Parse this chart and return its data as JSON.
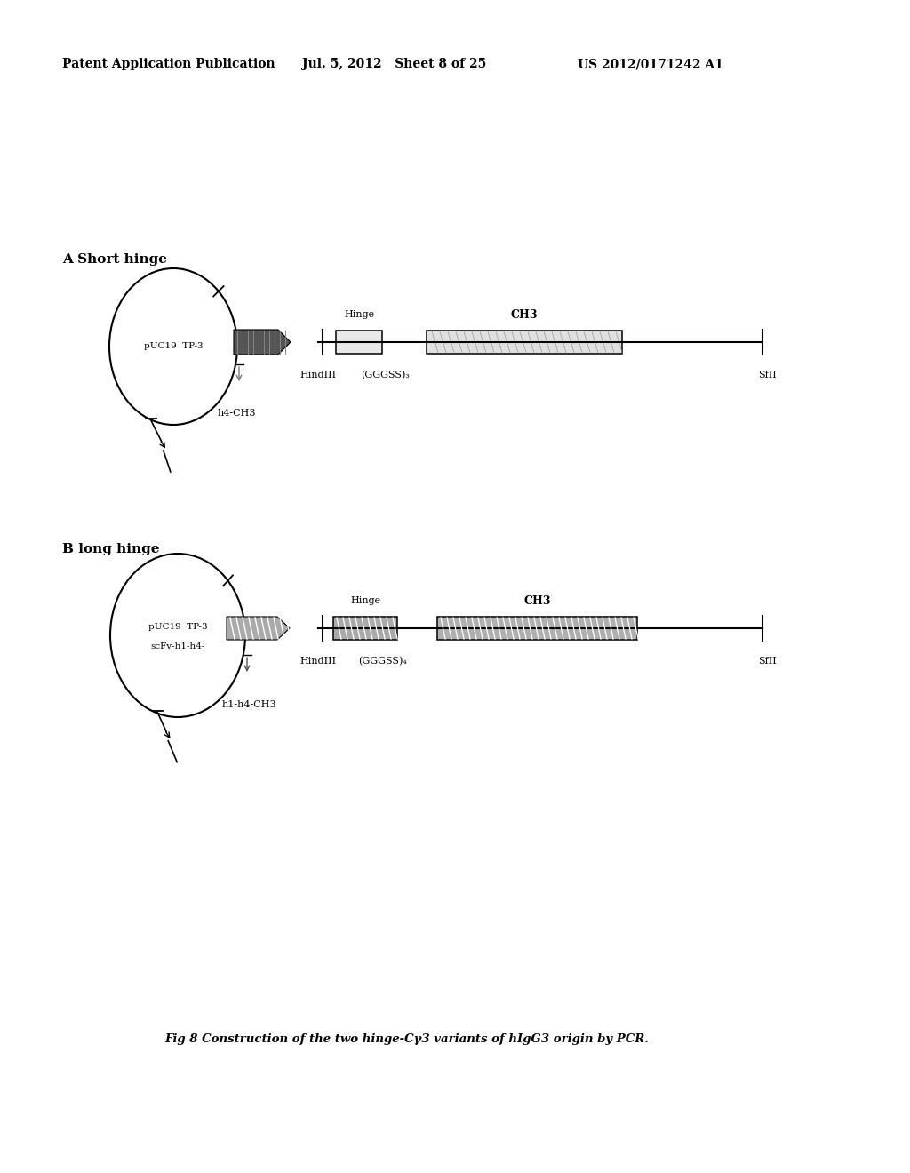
{
  "bg_color": "#ffffff",
  "header_left": "Patent Application Publication",
  "header_mid": "Jul. 5, 2012   Sheet 8 of 25",
  "header_right": "US 2012/0171242 A1",
  "section_A_label": "A Short hinge",
  "section_B_label": "B long hinge",
  "circle_A_text1": "pUC19  TP-3",
  "circle_A_label": "h4-CH3",
  "circle_B_text1": "pUC19  TP-3",
  "circle_B_text2": "scFv-h1-h4-",
  "circle_B_label": "h1-h4-CH3",
  "hindIII_label": "HindIII",
  "gggss_A_label": "(GGGSS)₃",
  "gggss_B_label": "(GGGSS)₄",
  "sfil_label": "SfII",
  "hinge_label": "Hinge",
  "ch3_label": "CH3",
  "fig_caption": "Fig 8 Construction of the two hinge-Cγ3 variants of hIgG3 origin by PCR.",
  "page_width": 10.24,
  "page_height": 13.2
}
